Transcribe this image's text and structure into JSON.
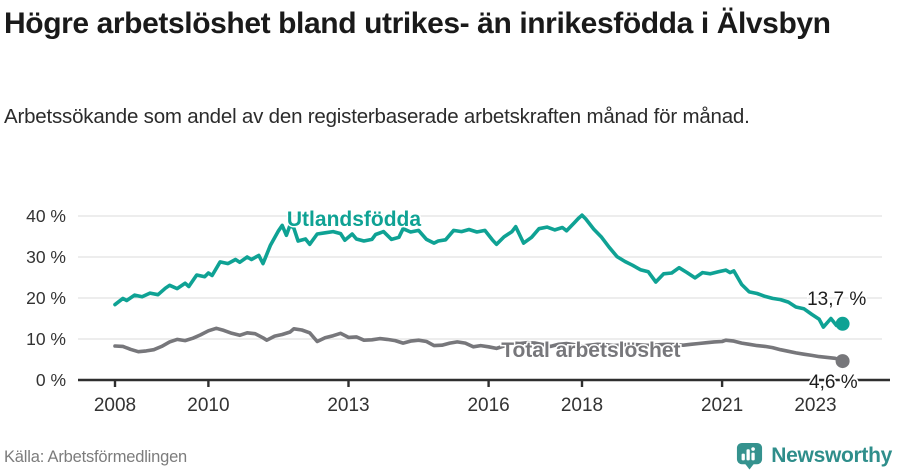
{
  "chart_data": {
    "type": "line",
    "title": "Högre arbetslöshet bland utrikes- än inrikesfödda i Älvsbyn",
    "subtitle": "Arbetssökande som andel av den registerbaserade arbetskraften månad för månad.",
    "xlabel": "",
    "ylabel": "",
    "ylim": [
      0,
      42
    ],
    "x_range": [
      2008,
      2023.58
    ],
    "grid": "horizontal",
    "legend_position": "inline-labels",
    "y_ticks": [
      {
        "value": 0,
        "label": "0 %"
      },
      {
        "value": 10,
        "label": "10 %"
      },
      {
        "value": 20,
        "label": "20 %"
      },
      {
        "value": 30,
        "label": "30 %"
      },
      {
        "value": 40,
        "label": "40 %"
      }
    ],
    "x_ticks": [
      {
        "value": 2008,
        "label": "2008"
      },
      {
        "value": 2010,
        "label": "2010"
      },
      {
        "value": 2013,
        "label": "2013"
      },
      {
        "value": 2016,
        "label": "2016"
      },
      {
        "value": 2018,
        "label": "2018"
      },
      {
        "value": 2021,
        "label": "2021"
      },
      {
        "value": 2023,
        "label": "2023"
      }
    ],
    "series": [
      {
        "name": "Utlandsfödda",
        "color": "#0fa294",
        "end_value_label": "13,7 %",
        "end_value": 13.7,
        "points": [
          [
            2008.0,
            18.4
          ],
          [
            2008.17,
            19.9
          ],
          [
            2008.25,
            19.4
          ],
          [
            2008.42,
            20.7
          ],
          [
            2008.58,
            20.3
          ],
          [
            2008.75,
            21.2
          ],
          [
            2008.92,
            20.8
          ],
          [
            2009.08,
            22.4
          ],
          [
            2009.17,
            23.1
          ],
          [
            2009.33,
            22.3
          ],
          [
            2009.5,
            23.6
          ],
          [
            2009.58,
            22.8
          ],
          [
            2009.75,
            25.6
          ],
          [
            2009.92,
            25.2
          ],
          [
            2010.0,
            26.1
          ],
          [
            2010.08,
            25.5
          ],
          [
            2010.25,
            28.8
          ],
          [
            2010.42,
            28.4
          ],
          [
            2010.58,
            29.4
          ],
          [
            2010.67,
            28.7
          ],
          [
            2010.83,
            30.0
          ],
          [
            2010.92,
            29.4
          ],
          [
            2011.08,
            30.4
          ],
          [
            2011.17,
            28.4
          ],
          [
            2011.33,
            32.9
          ],
          [
            2011.5,
            36.4
          ],
          [
            2011.58,
            37.7
          ],
          [
            2011.67,
            35.3
          ],
          [
            2011.75,
            37.8
          ],
          [
            2011.83,
            37.0
          ],
          [
            2011.92,
            33.9
          ],
          [
            2012.08,
            34.4
          ],
          [
            2012.17,
            33.1
          ],
          [
            2012.33,
            35.6
          ],
          [
            2012.5,
            35.9
          ],
          [
            2012.67,
            36.2
          ],
          [
            2012.83,
            35.7
          ],
          [
            2012.92,
            34.1
          ],
          [
            2013.08,
            35.6
          ],
          [
            2013.17,
            34.4
          ],
          [
            2013.33,
            33.9
          ],
          [
            2013.5,
            34.3
          ],
          [
            2013.58,
            35.5
          ],
          [
            2013.75,
            36.2
          ],
          [
            2013.92,
            34.3
          ],
          [
            2014.08,
            34.8
          ],
          [
            2014.17,
            36.9
          ],
          [
            2014.33,
            36.1
          ],
          [
            2014.5,
            36.5
          ],
          [
            2014.67,
            34.3
          ],
          [
            2014.83,
            33.4
          ],
          [
            2014.92,
            33.9
          ],
          [
            2015.08,
            34.2
          ],
          [
            2015.25,
            36.5
          ],
          [
            2015.42,
            36.2
          ],
          [
            2015.58,
            36.7
          ],
          [
            2015.75,
            36.1
          ],
          [
            2015.92,
            36.5
          ],
          [
            2016.08,
            34.2
          ],
          [
            2016.17,
            33.1
          ],
          [
            2016.33,
            34.9
          ],
          [
            2016.5,
            36.2
          ],
          [
            2016.58,
            37.4
          ],
          [
            2016.75,
            33.4
          ],
          [
            2016.92,
            34.8
          ],
          [
            2017.08,
            36.9
          ],
          [
            2017.25,
            37.3
          ],
          [
            2017.42,
            36.6
          ],
          [
            2017.58,
            37.2
          ],
          [
            2017.67,
            36.4
          ],
          [
            2017.83,
            38.3
          ],
          [
            2017.92,
            39.4
          ],
          [
            2018.0,
            40.2
          ],
          [
            2018.08,
            39.3
          ],
          [
            2018.25,
            36.8
          ],
          [
            2018.42,
            34.8
          ],
          [
            2018.58,
            32.4
          ],
          [
            2018.75,
            30.1
          ],
          [
            2018.92,
            28.9
          ],
          [
            2019.08,
            28.0
          ],
          [
            2019.25,
            26.9
          ],
          [
            2019.42,
            26.4
          ],
          [
            2019.58,
            23.9
          ],
          [
            2019.75,
            25.9
          ],
          [
            2019.92,
            26.1
          ],
          [
            2020.08,
            27.4
          ],
          [
            2020.25,
            26.2
          ],
          [
            2020.42,
            24.9
          ],
          [
            2020.58,
            26.2
          ],
          [
            2020.75,
            25.9
          ],
          [
            2020.92,
            26.4
          ],
          [
            2021.08,
            26.8
          ],
          [
            2021.17,
            26.2
          ],
          [
            2021.25,
            26.6
          ],
          [
            2021.42,
            23.3
          ],
          [
            2021.58,
            21.5
          ],
          [
            2021.75,
            21.1
          ],
          [
            2021.92,
            20.4
          ],
          [
            2022.08,
            19.9
          ],
          [
            2022.25,
            19.6
          ],
          [
            2022.42,
            19.0
          ],
          [
            2022.58,
            17.8
          ],
          [
            2022.75,
            17.4
          ],
          [
            2022.92,
            16.0
          ],
          [
            2023.08,
            14.8
          ],
          [
            2023.17,
            12.9
          ],
          [
            2023.33,
            15.0
          ],
          [
            2023.45,
            13.3
          ],
          [
            2023.58,
            13.7
          ]
        ]
      },
      {
        "name": "Total arbetslöshet",
        "color": "#77777b",
        "end_value_label": "4,6 %",
        "end_value": 4.6,
        "points": [
          [
            2008.0,
            8.3
          ],
          [
            2008.17,
            8.2
          ],
          [
            2008.33,
            7.5
          ],
          [
            2008.5,
            6.9
          ],
          [
            2008.67,
            7.1
          ],
          [
            2008.83,
            7.4
          ],
          [
            2009.0,
            8.2
          ],
          [
            2009.17,
            9.3
          ],
          [
            2009.33,
            9.9
          ],
          [
            2009.5,
            9.6
          ],
          [
            2009.67,
            10.2
          ],
          [
            2009.83,
            11.0
          ],
          [
            2010.0,
            12.0
          ],
          [
            2010.17,
            12.6
          ],
          [
            2010.33,
            12.1
          ],
          [
            2010.5,
            11.4
          ],
          [
            2010.67,
            10.9
          ],
          [
            2010.83,
            11.5
          ],
          [
            2011.0,
            11.3
          ],
          [
            2011.17,
            10.3
          ],
          [
            2011.25,
            9.7
          ],
          [
            2011.42,
            10.7
          ],
          [
            2011.58,
            11.1
          ],
          [
            2011.75,
            11.7
          ],
          [
            2011.83,
            12.5
          ],
          [
            2012.0,
            12.2
          ],
          [
            2012.17,
            11.5
          ],
          [
            2012.33,
            9.4
          ],
          [
            2012.5,
            10.3
          ],
          [
            2012.67,
            10.8
          ],
          [
            2012.83,
            11.4
          ],
          [
            2013.0,
            10.4
          ],
          [
            2013.17,
            10.5
          ],
          [
            2013.33,
            9.7
          ],
          [
            2013.5,
            9.8
          ],
          [
            2013.67,
            10.1
          ],
          [
            2013.83,
            9.9
          ],
          [
            2014.0,
            9.6
          ],
          [
            2014.17,
            9.0
          ],
          [
            2014.33,
            9.5
          ],
          [
            2014.5,
            9.7
          ],
          [
            2014.67,
            9.4
          ],
          [
            2014.83,
            8.4
          ],
          [
            2015.0,
            8.5
          ],
          [
            2015.17,
            9.0
          ],
          [
            2015.33,
            9.3
          ],
          [
            2015.5,
            9.0
          ],
          [
            2015.67,
            8.1
          ],
          [
            2015.83,
            8.4
          ],
          [
            2016.0,
            8.1
          ],
          [
            2016.17,
            7.7
          ],
          [
            2016.33,
            8.3
          ],
          [
            2016.5,
            9.0
          ],
          [
            2016.67,
            8.9
          ],
          [
            2016.83,
            9.1
          ],
          [
            2017.0,
            9.0
          ],
          [
            2017.17,
            8.6
          ],
          [
            2017.33,
            8.2
          ],
          [
            2017.5,
            8.7
          ],
          [
            2017.67,
            8.9
          ],
          [
            2017.83,
            8.6
          ],
          [
            2018.0,
            8.3
          ],
          [
            2018.17,
            8.5
          ],
          [
            2018.33,
            8.7
          ],
          [
            2018.5,
            8.6
          ],
          [
            2018.67,
            8.4
          ],
          [
            2018.83,
            8.5
          ],
          [
            2019.0,
            8.7
          ],
          [
            2019.17,
            8.6
          ],
          [
            2019.33,
            8.5
          ],
          [
            2019.5,
            8.4
          ],
          [
            2019.67,
            8.6
          ],
          [
            2019.83,
            8.7
          ],
          [
            2020.0,
            8.6
          ],
          [
            2020.17,
            8.5
          ],
          [
            2020.33,
            8.7
          ],
          [
            2020.5,
            8.9
          ],
          [
            2020.67,
            9.1
          ],
          [
            2020.83,
            9.3
          ],
          [
            2021.0,
            9.4
          ],
          [
            2021.08,
            9.7
          ],
          [
            2021.25,
            9.5
          ],
          [
            2021.42,
            9.0
          ],
          [
            2021.58,
            8.7
          ],
          [
            2021.75,
            8.4
          ],
          [
            2021.92,
            8.2
          ],
          [
            2022.08,
            7.9
          ],
          [
            2022.25,
            7.4
          ],
          [
            2022.42,
            7.0
          ],
          [
            2022.58,
            6.6
          ],
          [
            2022.75,
            6.3
          ],
          [
            2022.92,
            6.0
          ],
          [
            2023.08,
            5.7
          ],
          [
            2023.25,
            5.5
          ],
          [
            2023.42,
            5.3
          ],
          [
            2023.5,
            5.0
          ],
          [
            2023.58,
            4.6
          ]
        ]
      }
    ],
    "annotations": [
      {
        "text": "Utlandsfödda",
        "x": 2011.68,
        "y": 37.6,
        "anchor": "start",
        "class": "series-label",
        "color": "#0fa294"
      },
      {
        "text": "Total arbetslöshet",
        "x": 2016.27,
        "y": 5.6,
        "anchor": "start",
        "class": "series-label",
        "color": "#77777b"
      },
      {
        "text": "13,7 %",
        "x": 2022.82,
        "y": 18.3,
        "anchor": "start",
        "class": "value-label",
        "color": "#1d1d1d"
      },
      {
        "text": "4,6 %",
        "x": 2022.86,
        "y": -1.95,
        "anchor": "start",
        "class": "value-label",
        "color": "#1d1d1d"
      }
    ],
    "axis_color": "#2e2e2e",
    "gridline_color": "#e2e2e2"
  },
  "footer": {
    "source": "Källa: Arbetsförmedlingen",
    "brand": "Newsworthy"
  }
}
